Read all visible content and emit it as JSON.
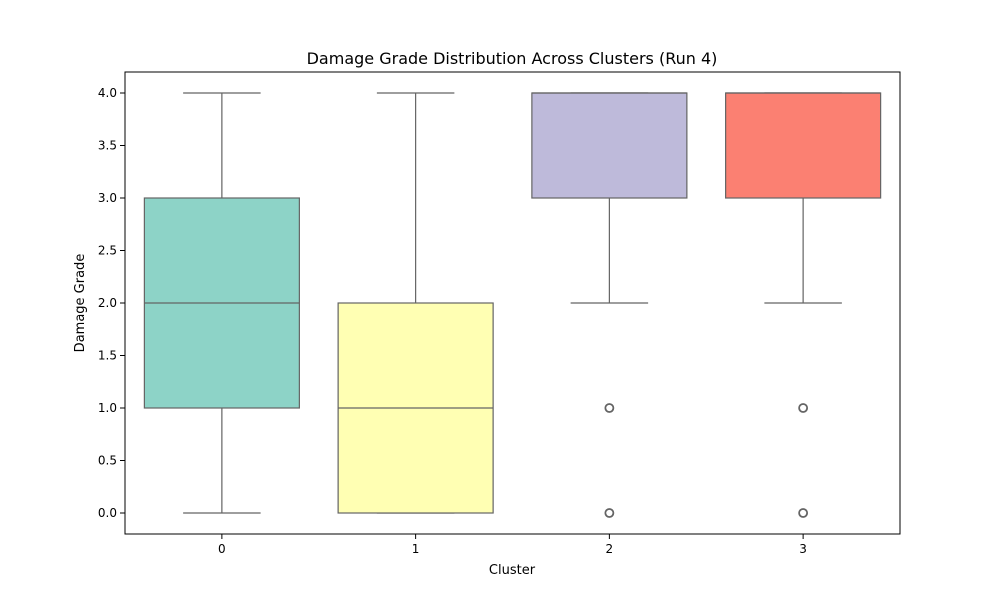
{
  "chart_data": {
    "type": "box",
    "title": "Damage Grade Distribution Across Clusters (Run 4)",
    "xlabel": "Cluster",
    "ylabel": "Damage Grade",
    "ylim": [
      -0.2,
      4.2
    ],
    "yticks": [
      "0.0",
      "0.5",
      "1.0",
      "1.5",
      "2.0",
      "2.5",
      "3.0",
      "3.5",
      "4.0"
    ],
    "grid": false,
    "categories": [
      "0",
      "1",
      "2",
      "3"
    ],
    "boxes": [
      {
        "category": "0",
        "whisker_low": 0,
        "q1": 1,
        "median": 2,
        "q3": 3,
        "whisker_high": 4,
        "outliers": [],
        "color": "#8dd3c7"
      },
      {
        "category": "1",
        "whisker_low": 0,
        "q1": 0,
        "median": 1,
        "q3": 2,
        "whisker_high": 4,
        "outliers": [],
        "color": "#ffffb3"
      },
      {
        "category": "2",
        "whisker_low": 2,
        "q1": 3,
        "median": 4,
        "q3": 4,
        "whisker_high": 4,
        "outliers": [
          0,
          1
        ],
        "color": "#bebada"
      },
      {
        "category": "3",
        "whisker_low": 2,
        "q1": 3,
        "median": 4,
        "q3": 4,
        "whisker_high": 4,
        "outliers": [
          0,
          1
        ],
        "color": "#fb8072"
      }
    ]
  }
}
